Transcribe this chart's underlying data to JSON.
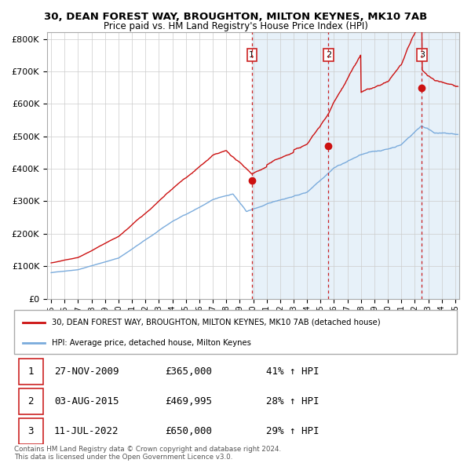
{
  "title_line1": "30, DEAN FOREST WAY, BROUGHTON, MILTON KEYNES, MK10 7AB",
  "title_line2": "Price paid vs. HM Land Registry's House Price Index (HPI)",
  "ylabel_ticks": [
    "£0",
    "£100K",
    "£200K",
    "£300K",
    "£400K",
    "£500K",
    "£600K",
    "£700K",
    "£800K"
  ],
  "ytick_values": [
    0,
    100000,
    200000,
    300000,
    400000,
    500000,
    600000,
    700000,
    800000
  ],
  "ylim": [
    0,
    820000
  ],
  "xlim_start": 1994.7,
  "xlim_end": 2025.3,
  "purchase_dates": [
    2009.9,
    2015.58,
    2022.52
  ],
  "purchase_prices": [
    365000,
    469995,
    650000
  ],
  "purchase_labels": [
    "1",
    "2",
    "3"
  ],
  "vline_color": "#cc2222",
  "legend_entry1": "30, DEAN FOREST WAY, BROUGHTON, MILTON KEYNES, MK10 7AB (detached house)",
  "legend_entry2": "HPI: Average price, detached house, Milton Keynes",
  "table_rows": [
    [
      "1",
      "27-NOV-2009",
      "£365,000",
      "41% ↑ HPI"
    ],
    [
      "2",
      "03-AUG-2015",
      "£469,995",
      "28% ↑ HPI"
    ],
    [
      "3",
      "11-JUL-2022",
      "£650,000",
      "29% ↑ HPI"
    ]
  ],
  "footer_text": "Contains HM Land Registry data © Crown copyright and database right 2024.\nThis data is licensed under the Open Government Licence v3.0.",
  "red_line_color": "#cc1111",
  "blue_line_color": "#7aabdc",
  "shade_color": "#d0e4f5",
  "grid_color": "#cccccc",
  "shade_alpha": 0.5
}
